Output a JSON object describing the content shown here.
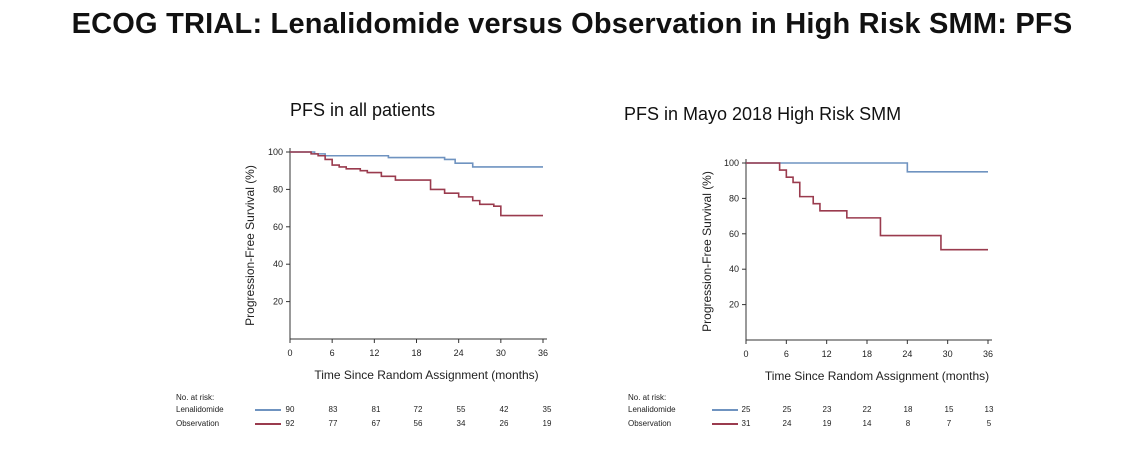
{
  "title": "ECOG TRIAL: Lenalidomide versus Observation in High Risk SMM: PFS",
  "colors": {
    "lenalidomide": "#6f93c0",
    "observation": "#9a3b4e",
    "axis": "#333333"
  },
  "chart_data": [
    {
      "type": "line",
      "step": true,
      "title": "PFS in all patients",
      "xlabel": "Time Since Random Assignment (months)",
      "ylabel": "Progression-Free Survival (%)",
      "xlim": [
        0,
        36
      ],
      "ylim": [
        0,
        100
      ],
      "xticks": [
        0,
        6,
        12,
        18,
        24,
        30,
        36
      ],
      "yticks": [
        20,
        40,
        60,
        80,
        100
      ],
      "grid": false,
      "series": [
        {
          "name": "Lenalidomide",
          "color_key": "lenalidomide",
          "x": [
            0,
            3.5,
            5,
            7,
            14,
            18,
            22,
            23.5,
            26,
            36
          ],
          "y": [
            100,
            99,
            98,
            98,
            97,
            97,
            96,
            94,
            92,
            92
          ]
        },
        {
          "name": "Observation",
          "color_key": "observation",
          "x": [
            0,
            3,
            4,
            5,
            6,
            7,
            8,
            10,
            11,
            13,
            15,
            19,
            20,
            22,
            24,
            26,
            27,
            29,
            30,
            36
          ],
          "y": [
            100,
            99,
            98,
            96,
            93,
            92,
            91,
            90,
            89,
            87,
            85,
            85,
            80,
            78,
            76,
            74,
            72,
            71,
            66,
            66
          ]
        }
      ],
      "risk_table": {
        "title": "No. at risk:",
        "times": [
          0,
          6,
          12,
          18,
          24,
          30,
          36
        ],
        "rows": [
          {
            "name": "Lenalidomide",
            "color_key": "lenalidomide",
            "values": [
              90,
              83,
              81,
              72,
              55,
              42,
              35
            ]
          },
          {
            "name": "Observation",
            "color_key": "observation",
            "values": [
              92,
              77,
              67,
              56,
              34,
              26,
              19
            ]
          }
        ]
      }
    },
    {
      "type": "line",
      "step": true,
      "title": "PFS in Mayo 2018 High Risk SMM",
      "xlabel": "Time Since Random Assignment (months)",
      "ylabel": "Progression-Free Survival (%)",
      "xlim": [
        0,
        36
      ],
      "ylim": [
        0,
        100
      ],
      "xticks": [
        0,
        6,
        12,
        18,
        24,
        30,
        36
      ],
      "yticks": [
        20,
        40,
        60,
        80,
        100
      ],
      "grid": false,
      "series": [
        {
          "name": "Lenalidomide",
          "color_key": "lenalidomide",
          "x": [
            0,
            24,
            36
          ],
          "y": [
            100,
            95,
            95
          ]
        },
        {
          "name": "Observation",
          "color_key": "observation",
          "x": [
            0,
            5,
            6,
            7,
            8,
            10,
            11,
            15,
            20,
            29,
            36
          ],
          "y": [
            100,
            96,
            92,
            89,
            81,
            77,
            73,
            69,
            59,
            51,
            51
          ]
        }
      ],
      "risk_table": {
        "title": "No. at risk:",
        "times": [
          0,
          6,
          12,
          18,
          24,
          30,
          36
        ],
        "rows": [
          {
            "name": "Lenalidomide",
            "color_key": "lenalidomide",
            "values": [
              25,
              25,
              23,
              22,
              18,
              15,
              13
            ]
          },
          {
            "name": "Observation",
            "color_key": "observation",
            "values": [
              31,
              24,
              19,
              14,
              8,
              7,
              5
            ]
          }
        ]
      }
    }
  ]
}
